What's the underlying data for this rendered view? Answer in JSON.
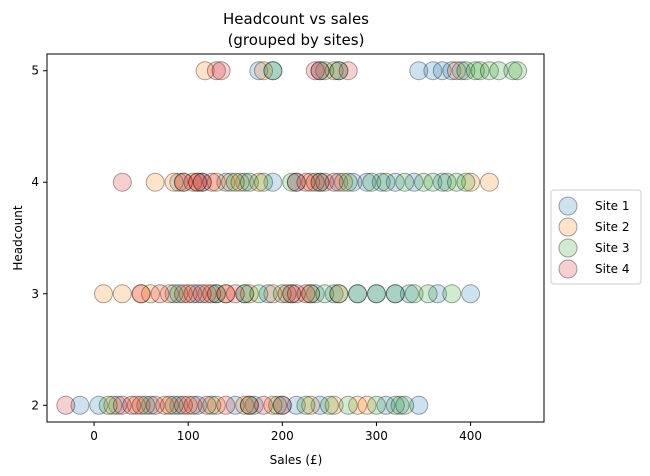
{
  "chart_data": {
    "type": "scatter",
    "title": "Headcount vs sales",
    "subtitle": "(grouped by sites)",
    "xlabel": "Sales (£)",
    "ylabel": "Headcount",
    "xlim": [
      -50,
      478
    ],
    "ylim": [
      1.85,
      5.15
    ],
    "xticks": [
      0,
      100,
      200,
      300,
      400
    ],
    "yticks": [
      2,
      3,
      4,
      5
    ],
    "grid": false,
    "legend_position": "right",
    "series": [
      {
        "name": "Site 1",
        "color": "#1f77b4",
        "points": [
          [
            -15,
            2
          ],
          [
            5,
            2
          ],
          [
            25,
            2
          ],
          [
            60,
            2
          ],
          [
            90,
            2
          ],
          [
            110,
            2
          ],
          [
            150,
            2
          ],
          [
            170,
            2
          ],
          [
            200,
            2
          ],
          [
            215,
            2
          ],
          [
            240,
            2
          ],
          [
            310,
            2
          ],
          [
            325,
            2
          ],
          [
            345,
            2
          ],
          [
            85,
            3
          ],
          [
            110,
            3
          ],
          [
            130,
            3
          ],
          [
            160,
            3
          ],
          [
            185,
            3
          ],
          [
            210,
            3
          ],
          [
            235,
            3
          ],
          [
            255,
            3
          ],
          [
            280,
            3
          ],
          [
            300,
            3
          ],
          [
            320,
            3
          ],
          [
            335,
            3
          ],
          [
            365,
            3
          ],
          [
            400,
            3
          ],
          [
            90,
            4
          ],
          [
            115,
            4
          ],
          [
            140,
            4
          ],
          [
            160,
            4
          ],
          [
            190,
            4
          ],
          [
            215,
            4
          ],
          [
            240,
            4
          ],
          [
            260,
            4
          ],
          [
            275,
            4
          ],
          [
            290,
            4
          ],
          [
            305,
            4
          ],
          [
            320,
            4
          ],
          [
            340,
            4
          ],
          [
            370,
            4
          ],
          [
            175,
            5
          ],
          [
            190,
            5
          ],
          [
            240,
            5
          ],
          [
            260,
            5
          ],
          [
            345,
            5
          ],
          [
            360,
            5
          ],
          [
            370,
            5
          ],
          [
            380,
            5
          ],
          [
            390,
            5
          ]
        ]
      },
      {
        "name": "Site 2",
        "color": "#ff7f0e",
        "points": [
          [
            20,
            2
          ],
          [
            45,
            2
          ],
          [
            75,
            2
          ],
          [
            100,
            2
          ],
          [
            130,
            2
          ],
          [
            160,
            2
          ],
          [
            190,
            2
          ],
          [
            230,
            2
          ],
          [
            255,
            2
          ],
          [
            280,
            2
          ],
          [
            290,
            2
          ],
          [
            10,
            3
          ],
          [
            30,
            3
          ],
          [
            50,
            3
          ],
          [
            60,
            3
          ],
          [
            80,
            3
          ],
          [
            100,
            3
          ],
          [
            120,
            3
          ],
          [
            140,
            3
          ],
          [
            165,
            3
          ],
          [
            190,
            3
          ],
          [
            210,
            3
          ],
          [
            230,
            3
          ],
          [
            260,
            3
          ],
          [
            65,
            4
          ],
          [
            85,
            4
          ],
          [
            95,
            4
          ],
          [
            110,
            4
          ],
          [
            130,
            4
          ],
          [
            145,
            4
          ],
          [
            155,
            4
          ],
          [
            175,
            4
          ],
          [
            230,
            4
          ],
          [
            265,
            4
          ],
          [
            400,
            4
          ],
          [
            420,
            4
          ],
          [
            118,
            5
          ],
          [
            180,
            5
          ],
          [
            255,
            5
          ],
          [
            385,
            5
          ]
        ]
      },
      {
        "name": "Site 3",
        "color": "#2ca02c",
        "points": [
          [
            15,
            2
          ],
          [
            55,
            2
          ],
          [
            85,
            2
          ],
          [
            125,
            2
          ],
          [
            165,
            2
          ],
          [
            195,
            2
          ],
          [
            225,
            2
          ],
          [
            250,
            2
          ],
          [
            270,
            2
          ],
          [
            300,
            2
          ],
          [
            320,
            2
          ],
          [
            330,
            2
          ],
          [
            90,
            3
          ],
          [
            130,
            3
          ],
          [
            160,
            3
          ],
          [
            175,
            3
          ],
          [
            200,
            3
          ],
          [
            230,
            3
          ],
          [
            245,
            3
          ],
          [
            260,
            3
          ],
          [
            280,
            3
          ],
          [
            300,
            3
          ],
          [
            320,
            3
          ],
          [
            340,
            3
          ],
          [
            355,
            3
          ],
          [
            380,
            3
          ],
          [
            150,
            4
          ],
          [
            165,
            4
          ],
          [
            180,
            4
          ],
          [
            210,
            4
          ],
          [
            240,
            4
          ],
          [
            270,
            4
          ],
          [
            295,
            4
          ],
          [
            310,
            4
          ],
          [
            330,
            4
          ],
          [
            350,
            4
          ],
          [
            360,
            4
          ],
          [
            375,
            4
          ],
          [
            385,
            4
          ],
          [
            395,
            4
          ],
          [
            190,
            5
          ],
          [
            245,
            5
          ],
          [
            260,
            5
          ],
          [
            395,
            5
          ],
          [
            405,
            5
          ],
          [
            410,
            5
          ],
          [
            420,
            5
          ],
          [
            430,
            5
          ],
          [
            445,
            5
          ],
          [
            450,
            5
          ]
        ]
      },
      {
        "name": "Site 4",
        "color": "#d62728",
        "points": [
          [
            -30,
            2
          ],
          [
            30,
            2
          ],
          [
            40,
            2
          ],
          [
            50,
            2
          ],
          [
            65,
            2
          ],
          [
            80,
            2
          ],
          [
            95,
            2
          ],
          [
            105,
            2
          ],
          [
            120,
            2
          ],
          [
            140,
            2
          ],
          [
            165,
            2
          ],
          [
            180,
            2
          ],
          [
            200,
            2
          ],
          [
            50,
            3
          ],
          [
            70,
            3
          ],
          [
            95,
            3
          ],
          [
            105,
            3
          ],
          [
            115,
            3
          ],
          [
            125,
            3
          ],
          [
            140,
            3
          ],
          [
            150,
            3
          ],
          [
            205,
            3
          ],
          [
            215,
            3
          ],
          [
            225,
            3
          ],
          [
            30,
            4
          ],
          [
            95,
            4
          ],
          [
            105,
            4
          ],
          [
            110,
            4
          ],
          [
            115,
            4
          ],
          [
            125,
            4
          ],
          [
            215,
            4
          ],
          [
            225,
            4
          ],
          [
            235,
            4
          ],
          [
            245,
            4
          ],
          [
            255,
            4
          ],
          [
            130,
            5
          ],
          [
            135,
            5
          ],
          [
            235,
            5
          ],
          [
            240,
            5
          ],
          [
            270,
            5
          ]
        ]
      }
    ]
  }
}
